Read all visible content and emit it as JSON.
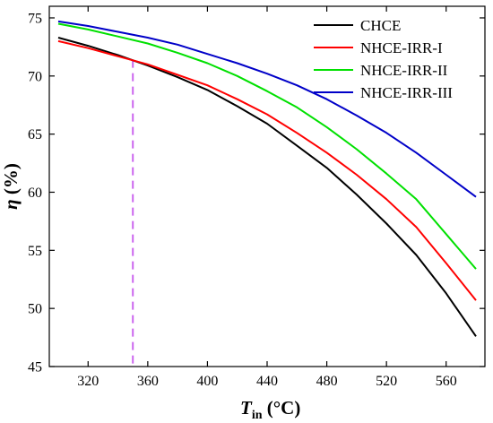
{
  "chart_data": {
    "type": "line",
    "title": "",
    "xlabel": {
      "symbol": "T",
      "subscript": "in",
      "unit": " (°C)"
    },
    "ylabel": {
      "symbol": "η",
      "unit": " (%)"
    },
    "xlim": [
      294,
      586
    ],
    "ylim": [
      45,
      76
    ],
    "xticks": [
      320,
      360,
      400,
      440,
      480,
      520,
      560
    ],
    "yticks": [
      45,
      50,
      55,
      60,
      65,
      70,
      75
    ],
    "grid": false,
    "legend": "top-right",
    "x": [
      300,
      320,
      340,
      360,
      380,
      400,
      420,
      440,
      460,
      480,
      500,
      520,
      540,
      560,
      580
    ],
    "series": [
      {
        "name": "CHCE",
        "color": "#000000",
        "values": [
          73.3,
          72.6,
          71.8,
          70.9,
          69.9,
          68.8,
          67.4,
          65.9,
          64.0,
          62.1,
          59.8,
          57.3,
          54.6,
          51.3,
          47.6
        ]
      },
      {
        "name": "NHCE-IRR-I",
        "color": "#ff0000",
        "values": [
          73.0,
          72.4,
          71.7,
          71.0,
          70.1,
          69.2,
          68.0,
          66.7,
          65.1,
          63.4,
          61.5,
          59.4,
          57.0,
          53.9,
          50.7
        ]
      },
      {
        "name": "NHCE-IRR-II",
        "color": "#00e000",
        "values": [
          74.5,
          74.0,
          73.4,
          72.8,
          72.0,
          71.1,
          70.0,
          68.7,
          67.3,
          65.6,
          63.7,
          61.6,
          59.4,
          56.4,
          53.4
        ]
      },
      {
        "name": "NHCE-IRR-III",
        "color": "#0000c8",
        "values": [
          74.7,
          74.3,
          73.8,
          73.3,
          72.7,
          71.9,
          71.1,
          70.2,
          69.2,
          68.0,
          66.6,
          65.1,
          63.4,
          61.5,
          59.6
        ]
      }
    ],
    "annotation": {
      "type": "vertical-dashed-line",
      "x": 350,
      "y_top": 71.4,
      "color": "#cc66ee"
    }
  }
}
